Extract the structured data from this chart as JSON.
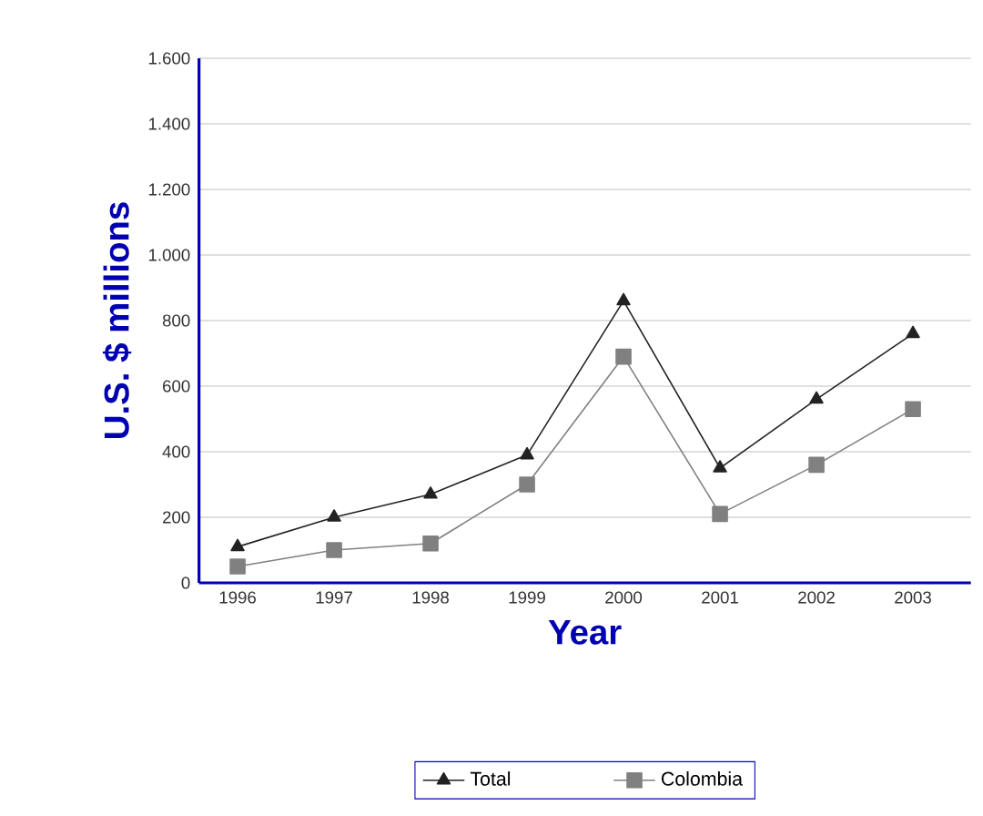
{
  "chart_data": {
    "type": "line",
    "xlabel": "Year",
    "ylabel": "U.S. $ millions",
    "categories": [
      "1996",
      "1997",
      "1998",
      "1999",
      "2000",
      "2001",
      "2002",
      "2003"
    ],
    "series": [
      {
        "name": "Total",
        "color": "#222222",
        "marker": "triangle",
        "values": [
          110,
          200,
          270,
          390,
          860,
          350,
          560,
          760
        ]
      },
      {
        "name": "Colombia",
        "color": "#808080",
        "marker": "square",
        "values": [
          50,
          100,
          120,
          300,
          690,
          210,
          360,
          530
        ]
      }
    ],
    "ylim": [
      0,
      1600
    ],
    "yticks": [
      0,
      200,
      400,
      600,
      800,
      {
        "value": 1000,
        "label": "1.000"
      },
      {
        "value": 1200,
        "label": "1.200"
      },
      {
        "value": 1400,
        "label": "1.400"
      },
      {
        "value": 1600,
        "label": "1.600"
      }
    ],
    "grid": "y",
    "legend": "bottom"
  }
}
